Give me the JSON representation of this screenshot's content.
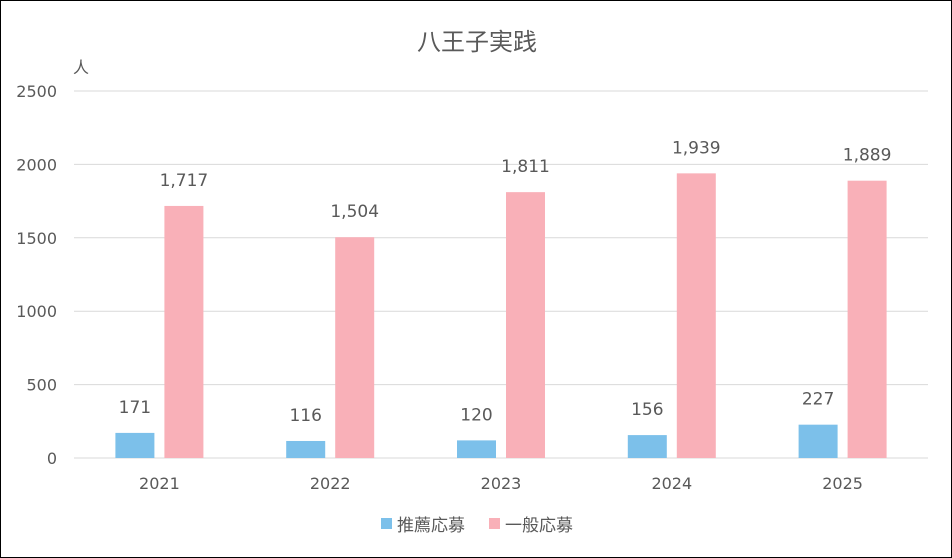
{
  "chart_data": {
    "type": "bar",
    "title": "八王子実践",
    "ylabel": "人",
    "xlabel": "",
    "categories": [
      "2021",
      "2022",
      "2023",
      "2024",
      "2025"
    ],
    "series": [
      {
        "name": "推薦応募",
        "color": "#7cc0ea",
        "values": [
          171,
          116,
          120,
          156,
          227
        ],
        "labels": [
          "171",
          "116",
          "120",
          "156",
          "227"
        ]
      },
      {
        "name": "一般応募",
        "color": "#f9b0b8",
        "values": [
          1717,
          1504,
          1811,
          1939,
          1889
        ],
        "labels": [
          "1,717",
          "1,504",
          "1,811",
          "1,939",
          "1,889"
        ]
      }
    ],
    "ylim": [
      0,
      2500
    ],
    "yticks": [
      "0",
      "500",
      "1000",
      "1500",
      "2000",
      "2500"
    ],
    "grid": true,
    "legend": "bottom"
  }
}
